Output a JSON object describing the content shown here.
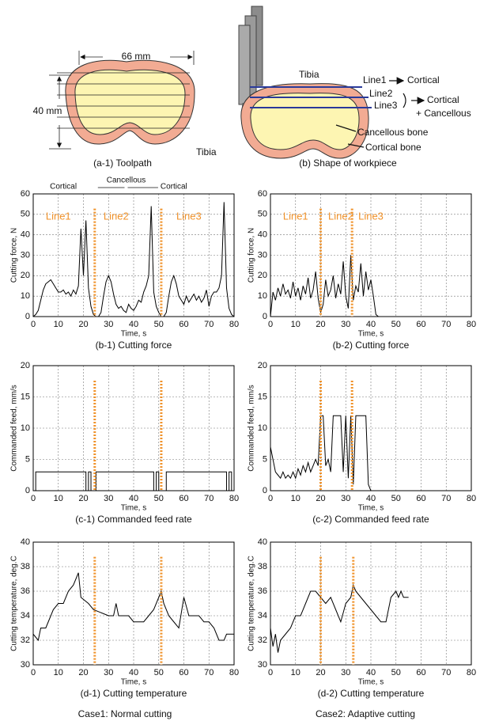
{
  "diagrams": {
    "toolpath": {
      "width_label": "66 mm",
      "height_label": "40 mm",
      "bone_label": "Tibia",
      "caption": "(a-1) Toolpath"
    },
    "workpiece": {
      "bone_label": "Tibia",
      "lines": [
        "Line1",
        "Line2",
        "Line3"
      ],
      "line_notes": [
        "Cortical",
        "Cortical",
        "+ Cancellous"
      ],
      "cancellous_label": "Cancellous bone",
      "cortical_label": "Cortical bone",
      "caption": "(b) Shape of workpiece"
    }
  },
  "chart_data": [
    {
      "type": "line",
      "caption": "(b-1) Cutting force",
      "xlabel": "Time, s",
      "ylabel": "Cutting force, N",
      "xlim": [
        0,
        80
      ],
      "xticks": [
        0,
        10,
        20,
        30,
        40,
        50,
        60,
        70,
        80
      ],
      "ylim": [
        0,
        60
      ],
      "yticks": [
        0,
        10,
        20,
        30,
        40,
        50,
        60
      ],
      "grid": true,
      "annotations": [
        "Line1",
        "Line2",
        "Line3"
      ],
      "region_labels": [
        "Cortical",
        "Cancellous",
        "Cortical"
      ],
      "vlines": [
        24.5,
        51
      ],
      "vline_color": "#f0922a",
      "series": [
        {
          "color": "#000000",
          "x": [
            0,
            1,
            2,
            3,
            4,
            5,
            6,
            7,
            8,
            9,
            10,
            11,
            12,
            13,
            14,
            15,
            16,
            17,
            18,
            19,
            20,
            21,
            22,
            23,
            24,
            25,
            26,
            27,
            28,
            29,
            30,
            31,
            32,
            33,
            34,
            35,
            36,
            37,
            38,
            39,
            40,
            41,
            42,
            43,
            44,
            45,
            46,
            47,
            48,
            49,
            50,
            51,
            52,
            53,
            54,
            55,
            56,
            57,
            58,
            59,
            60,
            61,
            62,
            63,
            64,
            65,
            66,
            67,
            68,
            69,
            70,
            71,
            72,
            73,
            74,
            75,
            76,
            77,
            78,
            79,
            80
          ],
          "values": [
            0,
            1,
            3,
            8,
            13,
            16,
            17,
            18,
            16,
            14,
            12,
            12,
            13,
            11,
            12,
            10,
            13,
            11,
            15,
            43,
            20,
            47,
            14,
            5,
            1,
            0,
            0,
            2,
            10,
            17,
            20,
            17,
            11,
            6,
            4,
            5,
            3,
            2,
            6,
            4,
            3,
            5,
            8,
            7,
            12,
            15,
            20,
            54,
            12,
            5,
            2,
            0,
            0,
            2,
            10,
            17,
            20,
            16,
            10,
            8,
            6,
            10,
            7,
            9,
            11,
            8,
            10,
            7,
            9,
            13,
            5,
            10,
            12,
            12,
            14,
            20,
            56,
            14,
            4,
            1,
            0
          ]
        }
      ]
    },
    {
      "type": "line",
      "caption": "(b-2) Cutting force",
      "xlabel": "Time, s",
      "ylabel": "Cutting force, N",
      "xlim": [
        0,
        80
      ],
      "xticks": [
        0,
        10,
        20,
        30,
        40,
        50,
        60,
        70,
        80
      ],
      "ylim": [
        0,
        60
      ],
      "yticks": [
        0,
        10,
        20,
        30,
        40,
        50,
        60
      ],
      "grid": true,
      "annotations": [
        "Line1",
        "Line2",
        "Line3"
      ],
      "vlines": [
        20,
        32.5
      ],
      "vline_color": "#f0922a",
      "series": [
        {
          "color": "#000000",
          "x": [
            0,
            1,
            2,
            3,
            4,
            5,
            6,
            7,
            8,
            9,
            10,
            11,
            12,
            13,
            14,
            15,
            16,
            17,
            18,
            19,
            20,
            21,
            22,
            23,
            24,
            25,
            26,
            27,
            28,
            29,
            30,
            31,
            32,
            33,
            34,
            35,
            36,
            37,
            38,
            39,
            40,
            41,
            42,
            43
          ],
          "values": [
            0,
            12,
            8,
            14,
            10,
            16,
            11,
            13,
            9,
            17,
            10,
            14,
            8,
            15,
            11,
            19,
            9,
            13,
            22,
            9,
            2,
            6,
            18,
            10,
            13,
            20,
            9,
            16,
            11,
            27,
            10,
            4,
            30,
            8,
            15,
            12,
            26,
            10,
            22,
            13,
            18,
            10,
            1,
            0
          ]
        }
      ]
    },
    {
      "type": "line",
      "caption": "(c-1) Commanded feed rate",
      "xlabel": "Time, s",
      "ylabel": "Commanded feed, mm/s",
      "xlim": [
        0,
        80
      ],
      "xticks": [
        0,
        10,
        20,
        30,
        40,
        50,
        60,
        70,
        80
      ],
      "ylim": [
        0,
        20
      ],
      "yticks": [
        0,
        5,
        10,
        15,
        20
      ],
      "grid": true,
      "vlines": [
        24.5,
        51
      ],
      "vline_color": "#f0922a",
      "series": [
        {
          "color": "#000000",
          "x": [
            1,
            1,
            21,
            21,
            22,
            22,
            23,
            23,
            25,
            25,
            48,
            48,
            49,
            49,
            50,
            50,
            53,
            53,
            77,
            77,
            78,
            78,
            79,
            79
          ],
          "values": [
            0,
            3,
            3,
            0,
            0,
            3,
            3,
            0,
            0,
            3,
            3,
            0,
            0,
            3,
            3,
            0,
            0,
            3,
            3,
            0,
            0,
            3,
            3,
            0
          ]
        }
      ]
    },
    {
      "type": "line",
      "caption": "(c-2) Commanded feed rate",
      "xlabel": "Time, s",
      "ylabel": "Commanded feed, mm/s",
      "xlim": [
        0,
        80
      ],
      "xticks": [
        0,
        10,
        20,
        30,
        40,
        50,
        60,
        70,
        80
      ],
      "ylim": [
        0,
        20
      ],
      "yticks": [
        0,
        5,
        10,
        15,
        20
      ],
      "grid": true,
      "vlines": [
        20,
        32.5
      ],
      "vline_color": "#f0922a",
      "series": [
        {
          "color": "#000000",
          "x": [
            0,
            1,
            2,
            3,
            4,
            5,
            6,
            7,
            8,
            9,
            10,
            11,
            12,
            13,
            14,
            15,
            16,
            17,
            18,
            19,
            20,
            21,
            22,
            23,
            24,
            25,
            26,
            27,
            28,
            29,
            30,
            31,
            32,
            33,
            34,
            35,
            36,
            37,
            38,
            39,
            40,
            41,
            42
          ],
          "values": [
            7,
            5,
            3,
            2.5,
            2,
            3,
            2,
            2.5,
            2,
            3,
            2,
            3.5,
            2.5,
            4,
            3,
            4.5,
            3,
            4,
            5,
            4,
            12,
            12,
            4,
            5,
            3,
            12,
            12,
            12,
            12,
            3,
            12,
            2,
            12,
            1,
            12,
            12,
            12,
            12,
            12,
            1,
            0,
            0,
            0
          ]
        }
      ]
    },
    {
      "type": "line",
      "caption": "(d-1) Cutting temperature",
      "xlabel": "Time, s",
      "ylabel": "Cutting temperature, deg.C",
      "xlim": [
        0,
        80
      ],
      "xticks": [
        0,
        10,
        20,
        30,
        40,
        50,
        60,
        70,
        80
      ],
      "ylim": [
        30,
        40
      ],
      "yticks": [
        30,
        32,
        34,
        36,
        38,
        40
      ],
      "grid": true,
      "vlines": [
        24.5,
        51
      ],
      "vline_color": "#f0922a",
      "series": [
        {
          "color": "#000000",
          "x": [
            0,
            2,
            3,
            5,
            6,
            8,
            10,
            12,
            14,
            16,
            18,
            19,
            22,
            24,
            30,
            32,
            33,
            34,
            36,
            38,
            40,
            42,
            44,
            46,
            48,
            50,
            51,
            52,
            54,
            56,
            58,
            60,
            62,
            64,
            66,
            68,
            70,
            72,
            74,
            76,
            77,
            80
          ],
          "values": [
            32.5,
            32,
            33,
            33,
            33.5,
            34.5,
            35,
            35,
            36,
            36.5,
            37.5,
            35.5,
            35,
            34.5,
            34,
            34,
            35,
            34,
            34,
            34,
            33.5,
            33.5,
            33.5,
            34,
            34.5,
            35.5,
            36,
            35,
            34,
            33.5,
            33,
            35.5,
            34,
            34,
            34,
            33.5,
            33.5,
            33,
            32,
            32,
            32.5,
            32.5
          ]
        }
      ]
    },
    {
      "type": "line",
      "caption": "(d-2) Cutting temperature",
      "xlabel": "Time, s",
      "ylabel": "Cutting temperature, deg.C",
      "xlim": [
        0,
        80
      ],
      "xticks": [
        0,
        10,
        20,
        30,
        40,
        50,
        60,
        70,
        80
      ],
      "ylim": [
        30,
        40
      ],
      "yticks": [
        30,
        32,
        34,
        36,
        38,
        40
      ],
      "grid": true,
      "vlines": [
        20,
        33
      ],
      "vline_color": "#f0922a",
      "series": [
        {
          "color": "#000000",
          "x": [
            0,
            1,
            2,
            3,
            4,
            6,
            8,
            10,
            12,
            14,
            16,
            18,
            20,
            22,
            24,
            26,
            28,
            30,
            32,
            33,
            34,
            36,
            38,
            40,
            42,
            44,
            46,
            48,
            50,
            51,
            52,
            53,
            55
          ],
          "values": [
            33,
            31.5,
            32.5,
            31,
            32,
            32.5,
            33,
            34,
            34,
            35,
            36,
            36,
            35.5,
            35,
            35.5,
            34.5,
            33.5,
            35,
            35.5,
            36.5,
            36,
            35.5,
            35,
            34.5,
            34,
            33.5,
            33.5,
            35.5,
            36,
            35.5,
            36,
            35.5,
            35.5
          ]
        }
      ]
    }
  ],
  "footer": [
    "Case1: Normal cutting",
    "Case2: Adaptive cutting"
  ]
}
